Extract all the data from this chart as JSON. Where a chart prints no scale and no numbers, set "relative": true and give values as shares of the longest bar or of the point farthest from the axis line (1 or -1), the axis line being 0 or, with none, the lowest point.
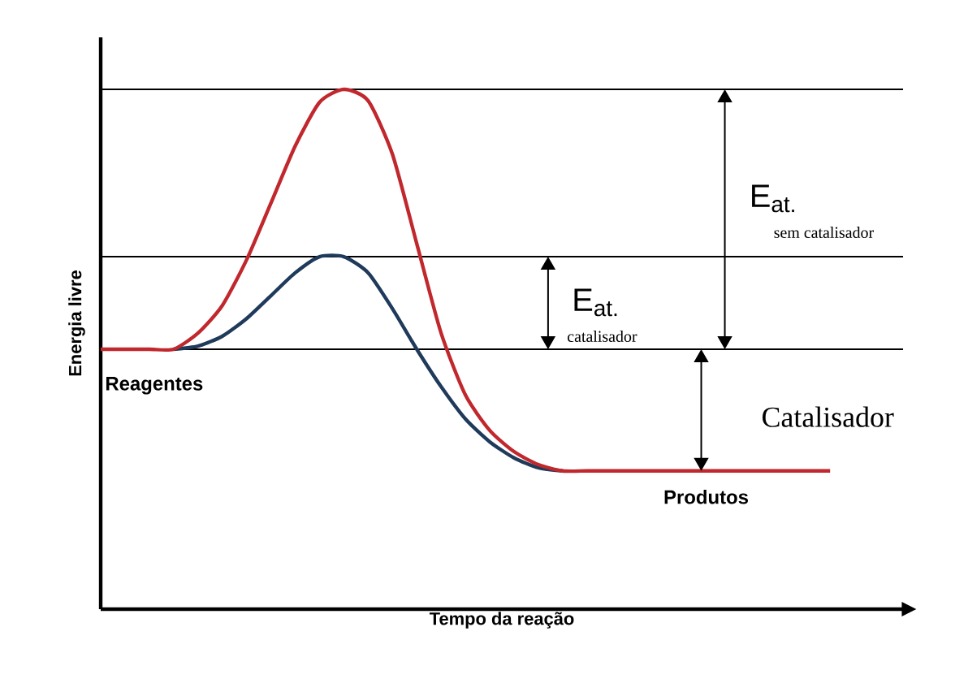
{
  "chart_data": {
    "type": "line",
    "relative": true,
    "xlabel": "Tempo da reação",
    "ylabel": "Energia livre",
    "categories": [
      null,
      null,
      null,
      null,
      null,
      null,
      null,
      null,
      null,
      null,
      null,
      null,
      null,
      null,
      null,
      null,
      null,
      null,
      null,
      null,
      null,
      null,
      null,
      null,
      null,
      null,
      null,
      null,
      null,
      null,
      null
    ],
    "series": [
      {
        "color": "#c0282d",
        "values": [
          0.5,
          0.5,
          0.5,
          0.5,
          0.531,
          0.584,
          0.672,
          0.781,
          0.891,
          0.975,
          1,
          0.978,
          0.875,
          0.703,
          0.531,
          0.412,
          0.344,
          0.303,
          0.278,
          0.266,
          0.266,
          0.266,
          0.266,
          0.266,
          0.266,
          0.266,
          0.266,
          0.266,
          0.266,
          0.266,
          0.266
        ]
      },
      {
        "color": "#1f3a5a",
        "values": [
          null,
          null,
          null,
          0.5,
          0.506,
          0.525,
          0.559,
          0.603,
          0.647,
          0.678,
          0.678,
          0.647,
          0.578,
          0.5,
          0.428,
          0.366,
          0.322,
          0.291,
          0.272,
          0.266,
          null,
          null,
          null,
          null,
          null,
          null,
          null,
          null,
          null,
          null,
          null
        ]
      }
    ],
    "ref_lines": [
      {
        "axis": "y",
        "value": 1,
        "color": "#000000"
      },
      {
        "axis": "y",
        "value": 0.678,
        "color": "#000000"
      },
      {
        "axis": "y",
        "value": 0.5,
        "color": "#000000"
      }
    ],
    "annotations": [
      "Reagentes",
      "Produtos",
      "Catalisador",
      "E$_{at.}$",
      "catalisador",
      "E$_{at.}$",
      "sem catalisador"
    ]
  }
}
